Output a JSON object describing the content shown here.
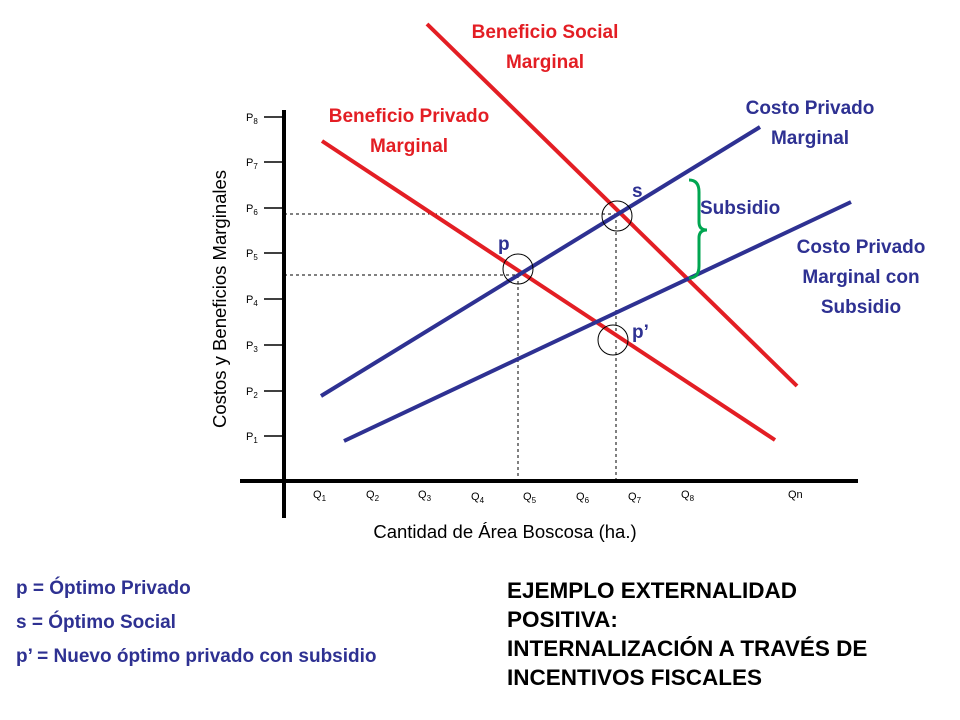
{
  "diagram": {
    "y_axis_label": "Costos y Beneficios Marginales",
    "x_axis_label": "Cantidad de Área Boscosa (ha.)",
    "y_ticks": [
      {
        "base": "P",
        "sub": "1"
      },
      {
        "base": "P",
        "sub": "2"
      },
      {
        "base": "P",
        "sub": "3"
      },
      {
        "base": "P",
        "sub": "4"
      },
      {
        "base": "P",
        "sub": "5"
      },
      {
        "base": "P",
        "sub": "6"
      },
      {
        "base": "P",
        "sub": "7"
      },
      {
        "base": "P",
        "sub": "8"
      }
    ],
    "x_ticks": [
      {
        "base": "Q",
        "sub": "1"
      },
      {
        "base": "Q",
        "sub": "2"
      },
      {
        "base": "Q",
        "sub": "3"
      },
      {
        "base": "Q",
        "sub": "4"
      },
      {
        "base": "Q",
        "sub": "5"
      },
      {
        "base": "Q",
        "sub": "6"
      },
      {
        "base": "Q",
        "sub": "7"
      },
      {
        "base": "Q",
        "sub": "8"
      },
      {
        "base": "Qn",
        "sub": ""
      }
    ],
    "curves": {
      "social_benefit": {
        "line1": "Beneficio Social",
        "line2": "Marginal",
        "color": "#e31e24"
      },
      "private_benefit": {
        "line1": "Beneficio Privado",
        "line2": "Marginal",
        "color": "#e31e24"
      },
      "private_cost": {
        "line1": "Costo Privado",
        "line2": "Marginal",
        "color": "#2e3192"
      },
      "private_cost_subsidy": {
        "line1": "Costo Privado",
        "line2": "Marginal con",
        "line3": "Subsidio",
        "color": "#2e3192"
      }
    },
    "subsidy_label": "Subsidio",
    "subsidy_color": "#00a651",
    "points": {
      "p": "p",
      "s": "s",
      "p_prime": "p’"
    }
  },
  "legend": {
    "p": "p = Óptimo Privado",
    "s": "s = Óptimo Social",
    "p_prime": "p’ = Nuevo óptimo privado con subsidio"
  },
  "headline": {
    "line1": "EJEMPLO EXTERNALIDAD",
    "line2": "POSITIVA:",
    "line3": "INTERNALIZACIÓN A TRAVÉS DE",
    "line4": "INCENTIVOS FISCALES"
  }
}
